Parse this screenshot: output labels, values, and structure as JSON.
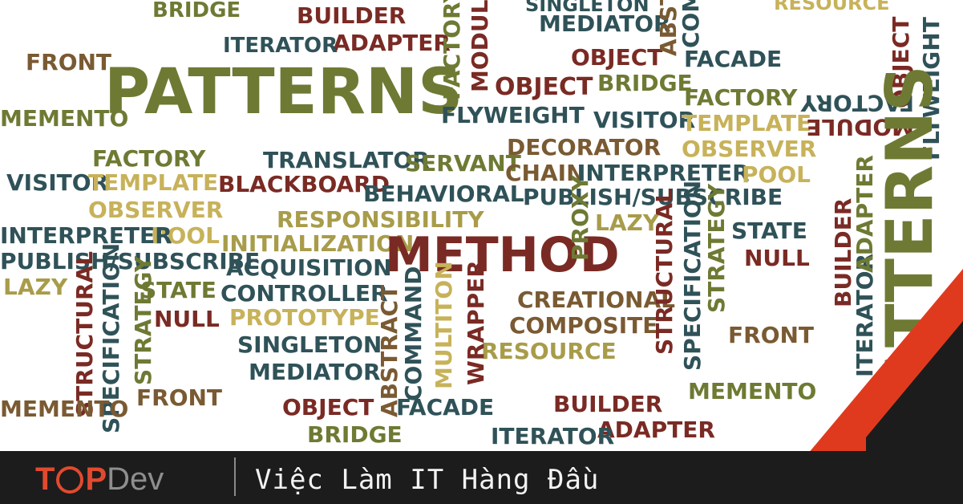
{
  "brand": {
    "logo_prefix": "T",
    "logo_mid": "P",
    "logo_suffix": "Dev",
    "tagline": "Việc Làm IT Hàng Đầu",
    "accent_color": "#e14a2f"
  },
  "cloud": {
    "words": [
      "BRIDGE",
      "BUILDER",
      "ADAPTER",
      "ITERATOR",
      "FRONT",
      "PATTERNS",
      "MEMENTO",
      "FACTORY",
      "SINGLETON",
      "MEDIATOR",
      "OBJECT",
      "OBJECT",
      "FACADE",
      "BRIDGE",
      "FLYWEIGHT",
      "VISITOR",
      "FACTORY",
      "TEMPLATE",
      "OBSERVER",
      "RESOURCE",
      "TRANSLATOR",
      "SERVANT",
      "DECORATOR",
      "CHAIN",
      "INTERPRETER",
      "POOL",
      "BLACKBOARD",
      "BEHAVIORAL",
      "PUBLISH/SUBSCRIBE",
      "VISITOR",
      "TEMPLATE",
      "OBSERVER",
      "RESPONSIBILITY",
      "INITIALIZATION",
      "METHOD",
      "LAZY",
      "STATE",
      "POOL",
      "NULL",
      "INTERPRETER",
      "ACQUISITION",
      "CONTROLLER",
      "PROXY",
      "PUBLISH/SUBSCRIBE",
      "LAZY",
      "STATE",
      "NULL",
      "PROTOTYPE",
      "CREATIONAL",
      "COMPOSITE",
      "SINGLETON",
      "MEDIATOR",
      "RESOURCE",
      "FRONT",
      "OBJECT",
      "FACADE",
      "BUILDER",
      "ADAPTER",
      "BRIDGE",
      "ITERATOR",
      "MEMENTO",
      "FRONT",
      "STRUCTURAL",
      "SPECIFICATION",
      "STRATEGY",
      "ABSTRACT",
      "COMMAND",
      "MULTITON",
      "WRAPPER",
      "STRUCTURAL",
      "SPECIFICATION",
      "STRATEGY",
      "FACTORY",
      "MODULE",
      "FACTORY",
      "MODULE",
      "OBJECT",
      "FLYWEIGHT",
      "BUILDER",
      "ITERATOR",
      "ADAPTER",
      "PATTERNS",
      "MEMENTO",
      "ABSTRACT",
      "COMMAND"
    ]
  }
}
